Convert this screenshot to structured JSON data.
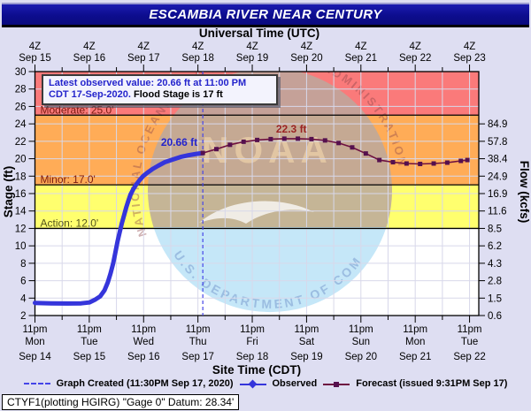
{
  "title": "ESCAMBIA RIVER NEAR CENTURY",
  "axes": {
    "top_label": "Universal Time (UTC)",
    "bottom_label": "Site Time (CDT)",
    "left_label": "Stage (ft)",
    "right_label": "Flow (kcfs)",
    "utc_ticks": [
      {
        "time": "4Z",
        "date": "Sep 15"
      },
      {
        "time": "4Z",
        "date": "Sep 16"
      },
      {
        "time": "4Z",
        "date": "Sep 17"
      },
      {
        "time": "4Z",
        "date": "Sep 18"
      },
      {
        "time": "4Z",
        "date": "Sep 19"
      },
      {
        "time": "4Z",
        "date": "Sep 20"
      },
      {
        "time": "4Z",
        "date": "Sep 21"
      },
      {
        "time": "4Z",
        "date": "Sep 22"
      },
      {
        "time": "4Z",
        "date": "Sep 23"
      }
    ],
    "site_ticks": [
      {
        "time": "11pm",
        "day": "Mon",
        "date": "Sep 14"
      },
      {
        "time": "11pm",
        "day": "Tue",
        "date": "Sep 15"
      },
      {
        "time": "11pm",
        "day": "Wed",
        "date": "Sep 16"
      },
      {
        "time": "11pm",
        "day": "Thu",
        "date": "Sep 17"
      },
      {
        "time": "11pm",
        "day": "Fri",
        "date": "Sep 18"
      },
      {
        "time": "11pm",
        "day": "Sat",
        "date": "Sep 19"
      },
      {
        "time": "11pm",
        "day": "Sun",
        "date": "Sep 20"
      },
      {
        "time": "11pm",
        "day": "Mon",
        "date": "Sep 21"
      },
      {
        "time": "11pm",
        "day": "Tue",
        "date": "Sep 22"
      }
    ],
    "stage_ticks": [
      30,
      28,
      26,
      24,
      22,
      20,
      18,
      16,
      14,
      12,
      10,
      8,
      6,
      4,
      2
    ],
    "flow_ticks": [
      "84.9",
      "57.8",
      "38.4",
      "24.9",
      "16.9",
      "11.6",
      "8.5",
      "6.2",
      "4.3",
      "2.8",
      "1.5",
      "0.6"
    ]
  },
  "annotation": {
    "line1": "Latest observed value: 20.66 ft at 11:00 PM",
    "line2_blue": "CDT 17-Sep-2020.",
    "line2_black": " Flood Stage is 17 ft"
  },
  "flood_categories": [
    {
      "name": "Moderate",
      "label": "Moderate: 25.0'",
      "stage": 25,
      "band_color": "#FA7A7A",
      "label_color": "#7A1A10"
    },
    {
      "name": "Minor",
      "label": "Minor: 17.0'",
      "stage": 17,
      "band_color": "#FFAC57",
      "label_color": "#7A1A10"
    },
    {
      "name": "Action",
      "label": "Action: 12.0'",
      "stage": 12,
      "band_color": "#FFFF6E",
      "label_color": "#55551E"
    }
  ],
  "labels": {
    "observed_latest": "20.66 ft",
    "forecast_crest": "22.3 ft"
  },
  "legend": {
    "created": "Graph Created (11:30PM Sep 17, 2020)",
    "observed": "Observed",
    "forecast": "Forecast (issued 9:31PM Sep 17)"
  },
  "footer": "CTYF1(plotting HGIRG) \"Gage 0\" Datum: 28.34'",
  "watermark": {
    "top_text": "NATIONAL OCEANIC AND ATMOSPHERIC ADMINISTRATION",
    "bottom_text": "U.S. DEPARTMENT OF COMMERCE",
    "center_text": "NOAA"
  },
  "colors": {
    "background": "#DEDEF2",
    "titlebar": "#0D0D8E",
    "observed": "#3535DB",
    "forecast_line": "#6E1040",
    "forecast_marker": "#55104E",
    "now_line": "#4545E8",
    "grid": "#D8D8EA",
    "moderate_band": "#FA7A7A",
    "minor_band": "#FFAC57",
    "action_band": "#FFFF6E",
    "observed_label": "#2424CC",
    "forecast_label": "#9B2424"
  },
  "chart_data": {
    "type": "line",
    "title": "ESCAMBIA RIVER NEAR CENTURY",
    "xlabel": "Site Time (CDT) / Universal Time (UTC)",
    "ylabel": "Stage (ft)",
    "ylabel_right": "Flow (kcfs)",
    "ylim": [
      2,
      30
    ],
    "x_days_total": 8.17,
    "x_day_labels": [
      "Sep 14 11pm",
      "Sep 15 11pm",
      "Sep 16 11pm",
      "Sep 17 11pm",
      "Sep 18 11pm",
      "Sep 19 11pm",
      "Sep 20 11pm",
      "Sep 21 11pm",
      "Sep 22 11pm"
    ],
    "flood_stage": 17,
    "action_stage": 12,
    "moderate_stage": 25,
    "now_days": 3.09,
    "grid": true,
    "legend_position": "bottom",
    "series": [
      {
        "name": "Observed",
        "points": [
          [
            0,
            3.45
          ],
          [
            0.3,
            3.4
          ],
          [
            0.6,
            3.38
          ],
          [
            0.85,
            3.4
          ],
          [
            1.0,
            3.5
          ],
          [
            1.1,
            3.8
          ],
          [
            1.2,
            4.2
          ],
          [
            1.28,
            4.9
          ],
          [
            1.34,
            5.8
          ],
          [
            1.39,
            6.8
          ],
          [
            1.44,
            8.0
          ],
          [
            1.48,
            9.2
          ],
          [
            1.52,
            10.5
          ],
          [
            1.56,
            11.6
          ],
          [
            1.6,
            12.6
          ],
          [
            1.64,
            13.5
          ],
          [
            1.68,
            14.4
          ],
          [
            1.72,
            15.2
          ],
          [
            1.76,
            15.9
          ],
          [
            1.81,
            16.5
          ],
          [
            1.86,
            17.0
          ],
          [
            1.92,
            17.5
          ],
          [
            1.99,
            18.0
          ],
          [
            2.07,
            18.4
          ],
          [
            2.16,
            18.8
          ],
          [
            2.27,
            19.2
          ],
          [
            2.39,
            19.6
          ],
          [
            2.53,
            19.9
          ],
          [
            2.68,
            20.2
          ],
          [
            2.83,
            20.4
          ],
          [
            2.97,
            20.55
          ],
          [
            3.09,
            20.66
          ]
        ]
      },
      {
        "name": "Forecast",
        "points": [
          [
            3.09,
            20.66
          ],
          [
            3.34,
            21.1
          ],
          [
            3.59,
            21.6
          ],
          [
            3.84,
            21.95
          ],
          [
            4.09,
            22.15
          ],
          [
            4.34,
            22.25
          ],
          [
            4.59,
            22.3
          ],
          [
            4.84,
            22.3
          ],
          [
            5.09,
            22.25
          ],
          [
            5.34,
            22.1
          ],
          [
            5.59,
            21.8
          ],
          [
            5.84,
            21.3
          ],
          [
            6.09,
            20.6
          ],
          [
            6.34,
            19.85
          ],
          [
            6.59,
            19.6
          ],
          [
            6.84,
            19.45
          ],
          [
            7.09,
            19.4
          ],
          [
            7.34,
            19.45
          ],
          [
            7.59,
            19.55
          ],
          [
            7.84,
            19.75
          ],
          [
            7.96,
            19.85
          ]
        ]
      }
    ]
  }
}
